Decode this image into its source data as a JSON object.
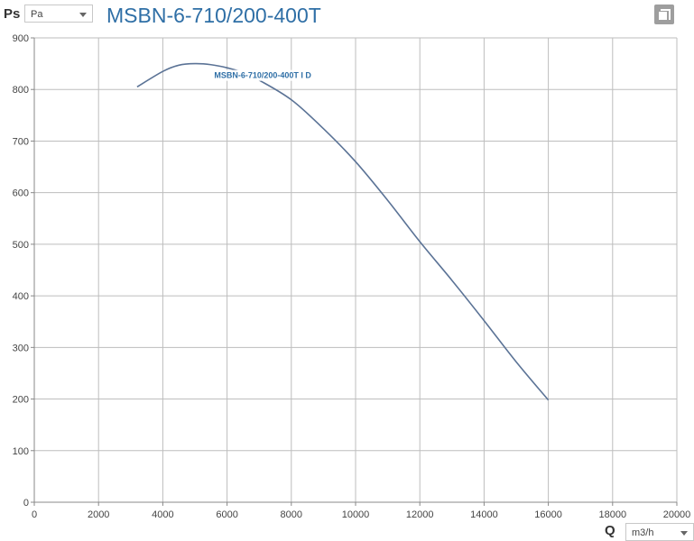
{
  "header": {
    "y_axis_label": "Ps",
    "y_unit": "Pa",
    "title": "MSBN-6-710/200-400T"
  },
  "footer": {
    "x_axis_label": "Q",
    "x_unit": "m3/h"
  },
  "icons": {
    "copy": "copy-icon",
    "dropdown": "chevron-down-icon"
  },
  "colors": {
    "curve": "#5b7396",
    "title": "#2f6fa6",
    "grid": "#bdbdbd"
  },
  "chart_data": {
    "type": "line",
    "title": "MSBN-6-710/200-400T",
    "xlabel": "Q",
    "ylabel": "Ps",
    "xlim": [
      0,
      20000
    ],
    "ylim": [
      0,
      900
    ],
    "x_ticks": [
      0,
      2000,
      4000,
      6000,
      8000,
      10000,
      12000,
      14000,
      16000,
      18000,
      20000
    ],
    "y_ticks": [
      0,
      100,
      200,
      300,
      400,
      500,
      600,
      700,
      800,
      900
    ],
    "grid": true,
    "series": [
      {
        "name": "MSBN-6-710/200-400T I D",
        "x": [
          3200,
          4000,
          4500,
          5000,
          5500,
          6000,
          6500,
          7000,
          8000,
          9000,
          10000,
          11000,
          12000,
          13000,
          14000,
          15000,
          16000
        ],
        "y": [
          805,
          835,
          847,
          850,
          848,
          842,
          833,
          818,
          780,
          724,
          660,
          585,
          505,
          430,
          352,
          272,
          198
        ]
      }
    ]
  }
}
